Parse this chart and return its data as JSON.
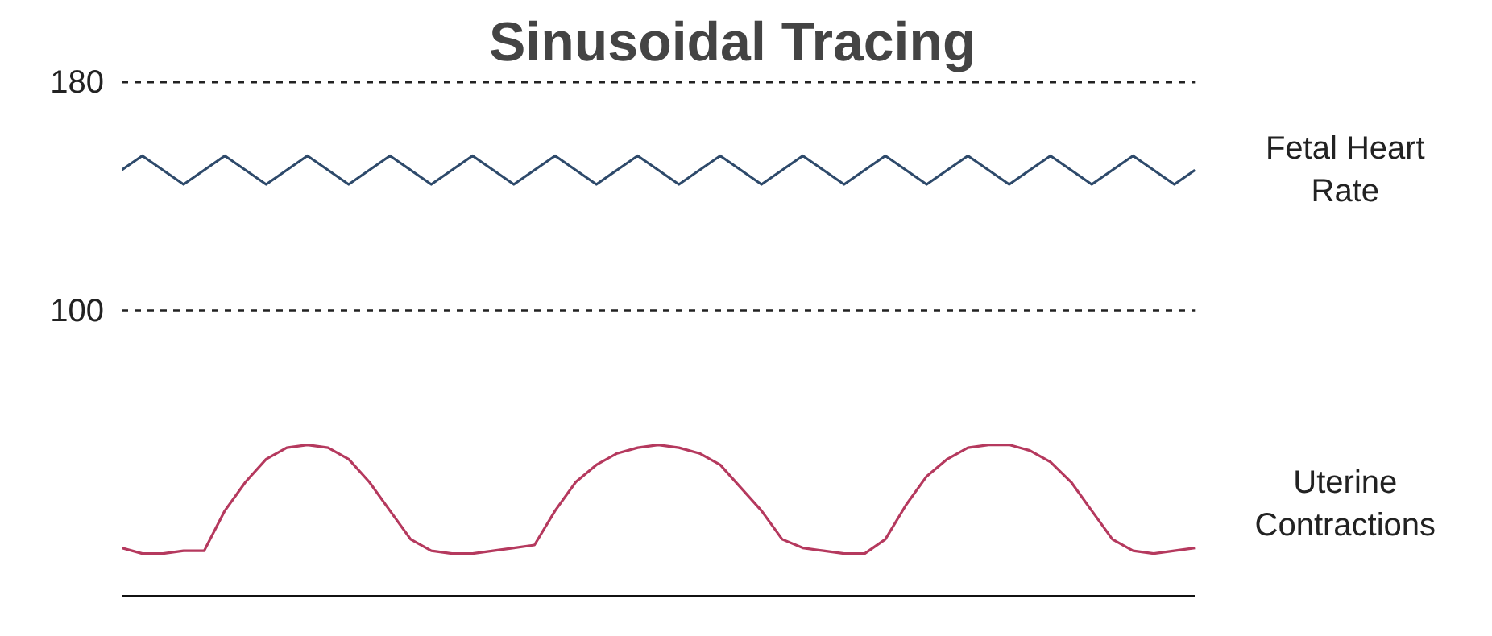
{
  "chart_data": {
    "type": "line",
    "title": "Sinusoidal Tracing",
    "categories": [
      null,
      null,
      null,
      null,
      null,
      null,
      null,
      null,
      null,
      null,
      null,
      null,
      null,
      null,
      null,
      null,
      null,
      null,
      null,
      null,
      null,
      null,
      null,
      null,
      null,
      null,
      null,
      null,
      null,
      null,
      null,
      null,
      null,
      null,
      null,
      null,
      null,
      null,
      null,
      null,
      null,
      null,
      null,
      null,
      null,
      null,
      null,
      null,
      null,
      null,
      null,
      null,
      null
    ],
    "series": [
      {
        "name": "Fetal Heart Rate",
        "color": "#2e4a6b",
        "values": [
          149,
          154,
          149,
          144,
          149,
          154,
          149,
          144,
          149,
          154,
          149,
          144,
          149,
          154,
          149,
          144,
          149,
          154,
          149,
          144,
          149,
          154,
          149,
          144,
          149,
          154,
          149,
          144,
          149,
          154,
          149,
          144,
          149,
          154,
          149,
          144,
          149,
          154,
          149,
          144,
          149,
          154,
          149,
          144,
          149,
          154,
          149,
          144,
          149,
          154,
          149,
          144,
          149
        ]
      },
      {
        "name": "Uterine Contractions",
        "color": "#b5395e",
        "values": [
          17,
          15,
          15,
          16,
          16,
          30,
          40,
          48,
          52,
          53,
          52,
          48,
          40,
          30,
          20,
          16,
          15,
          15,
          16,
          17,
          18,
          30,
          40,
          46,
          50,
          52,
          53,
          52,
          50,
          46,
          38,
          30,
          20,
          17,
          16,
          15,
          15,
          20,
          32,
          42,
          48,
          52,
          53,
          53,
          51,
          47,
          40,
          30,
          20,
          16,
          15,
          16,
          17
        ]
      }
    ],
    "ylim": [
      0,
      180
    ],
    "yticks": [
      100,
      180
    ],
    "ref_lines": [
      {
        "axis": "y",
        "value": 100,
        "line_style": "dashed"
      },
      {
        "axis": "y",
        "value": 180,
        "line_style": "dashed"
      }
    ],
    "line_style": "solid"
  }
}
